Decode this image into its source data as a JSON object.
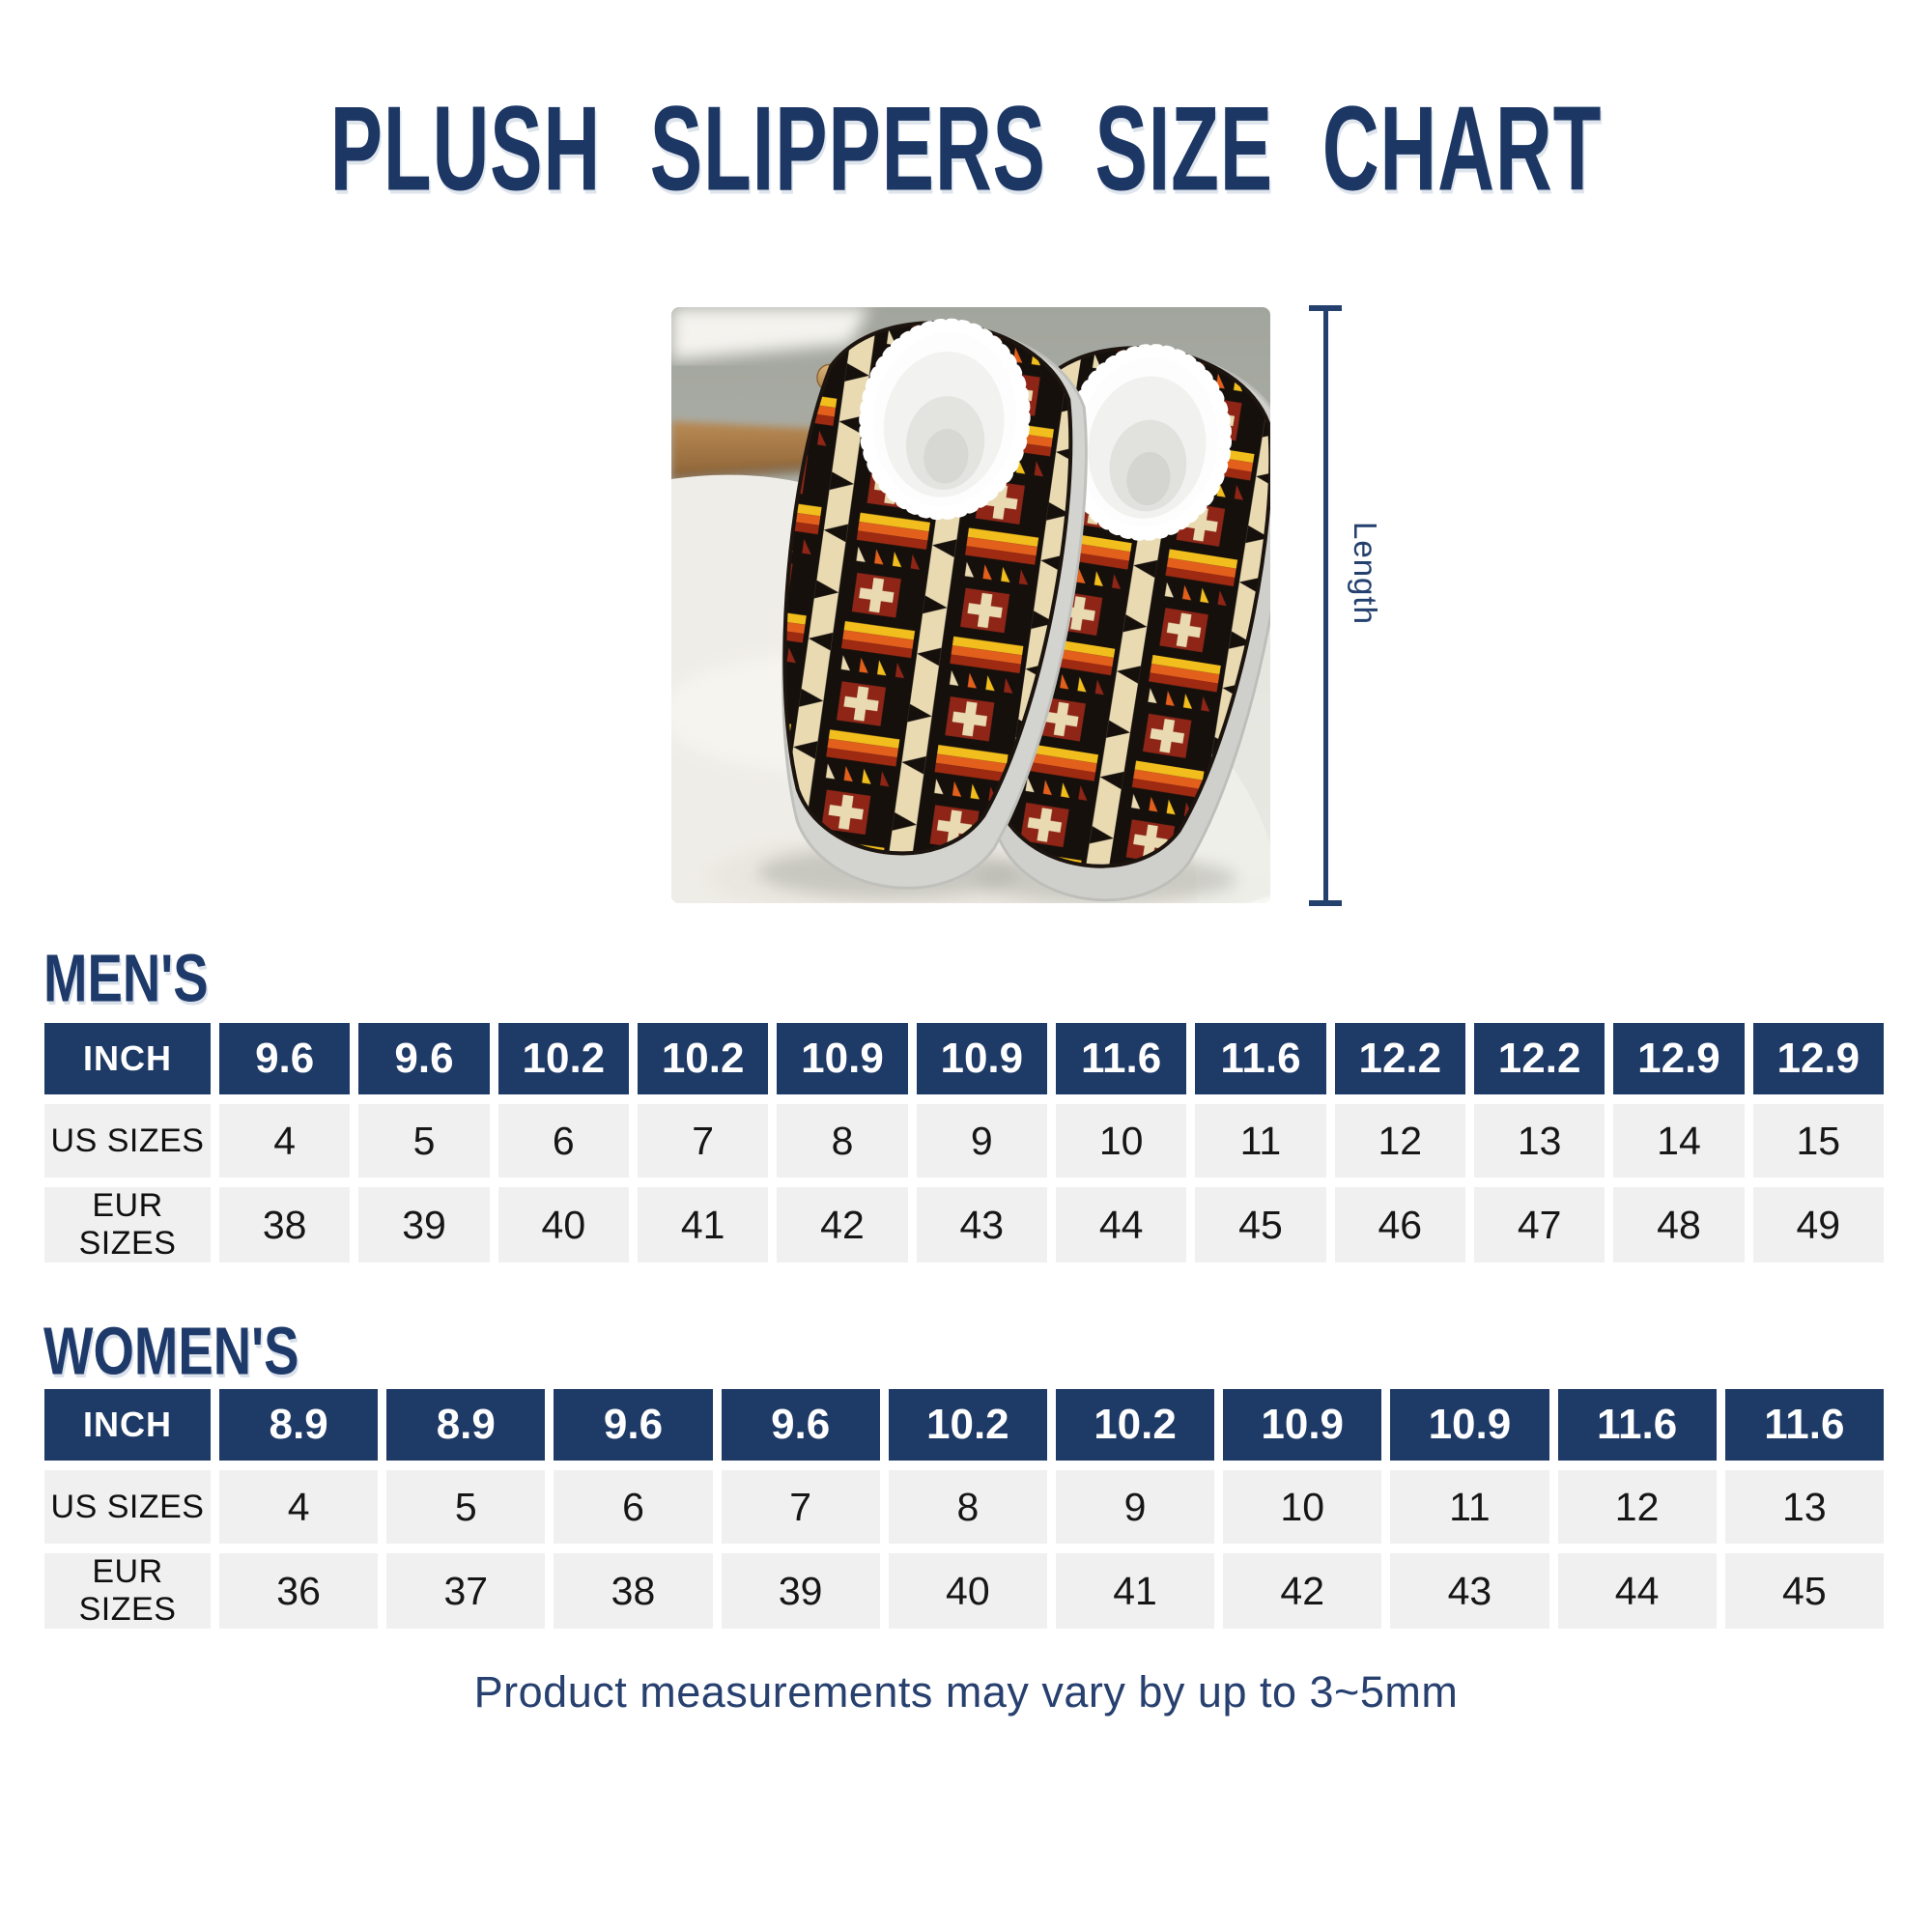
{
  "page": {
    "title": "PLUSH SLIPPERS SIZE CHART",
    "footer_note": "Product measurements may vary by up to 3~5mm"
  },
  "photo": {
    "description": "pair of plush slippers with black, cream, red, orange and yellow tribal pattern, white fleece lining, grey soles, on a white shag rug",
    "length_label": "Length"
  },
  "colors": {
    "navy": "#1e3a66",
    "title_navy": "#1d3765",
    "cell_bg": "#f0f0f0",
    "text_dark": "#161616"
  },
  "mens": {
    "heading": "MEN'S",
    "table": {
      "header": {
        "label": "INCH",
        "values": [
          "9.6",
          "9.6",
          "10.2",
          "10.2",
          "10.9",
          "10.9",
          "11.6",
          "11.6",
          "12.2",
          "12.2",
          "12.9",
          "12.9"
        ]
      },
      "rows": [
        {
          "label": "US SIZES",
          "values": [
            "4",
            "5",
            "6",
            "7",
            "8",
            "9",
            "10",
            "11",
            "12",
            "13",
            "14",
            "15"
          ]
        },
        {
          "label": "EUR SIZES",
          "values": [
            "38",
            "39",
            "40",
            "41",
            "42",
            "43",
            "44",
            "45",
            "46",
            "47",
            "48",
            "49"
          ]
        }
      ]
    }
  },
  "womens": {
    "heading": "WOMEN'S",
    "table": {
      "header": {
        "label": "INCH",
        "values": [
          "8.9",
          "8.9",
          "9.6",
          "9.6",
          "10.2",
          "10.2",
          "10.9",
          "10.9",
          "11.6",
          "11.6"
        ]
      },
      "rows": [
        {
          "label": "US SIZES",
          "values": [
            "4",
            "5",
            "6",
            "7",
            "8",
            "9",
            "10",
            "11",
            "12",
            "13"
          ]
        },
        {
          "label": "EUR SIZES",
          "values": [
            "36",
            "37",
            "38",
            "39",
            "40",
            "41",
            "42",
            "43",
            "44",
            "45"
          ]
        }
      ]
    }
  },
  "chart_data": [
    {
      "type": "table",
      "title": "MEN'S",
      "row_labels": [
        "INCH",
        "US SIZES",
        "EUR SIZES"
      ],
      "rows": [
        [
          "9.6",
          "9.6",
          "10.2",
          "10.2",
          "10.9",
          "10.9",
          "11.6",
          "11.6",
          "12.2",
          "12.2",
          "12.9",
          "12.9"
        ],
        [
          "4",
          "5",
          "6",
          "7",
          "8",
          "9",
          "10",
          "11",
          "12",
          "13",
          "14",
          "15"
        ],
        [
          "38",
          "39",
          "40",
          "41",
          "42",
          "43",
          "44",
          "45",
          "46",
          "47",
          "48",
          "49"
        ]
      ]
    },
    {
      "type": "table",
      "title": "WOMEN'S",
      "row_labels": [
        "INCH",
        "US SIZES",
        "EUR SIZES"
      ],
      "rows": [
        [
          "8.9",
          "8.9",
          "9.6",
          "9.6",
          "10.2",
          "10.2",
          "10.9",
          "10.9",
          "11.6",
          "11.6"
        ],
        [
          "4",
          "5",
          "6",
          "7",
          "8",
          "9",
          "10",
          "11",
          "12",
          "13"
        ],
        [
          "36",
          "37",
          "38",
          "39",
          "40",
          "41",
          "42",
          "43",
          "44",
          "45"
        ]
      ]
    }
  ]
}
